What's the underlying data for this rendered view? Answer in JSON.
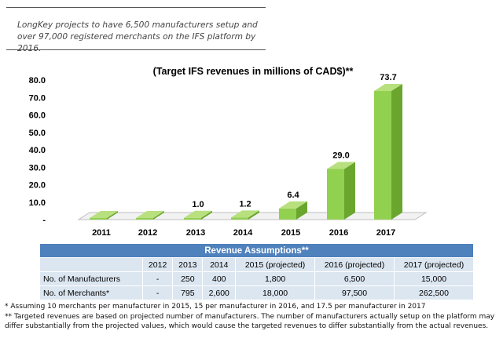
{
  "caption": "LongKey projects to have 6,500 manufacturers setup and over 97,000 registered merchants on the IFS platform by 2016.",
  "chart_data": {
    "type": "bar",
    "title": "(Target IFS revenues in millions of CAD$)**",
    "categories": [
      "2011",
      "2012",
      "2013",
      "2014",
      "2015",
      "2016",
      "2017"
    ],
    "values": [
      0,
      0,
      1.0,
      1.2,
      6.4,
      29.0,
      73.7
    ],
    "data_labels": [
      "-",
      "-",
      "1.0",
      "1.2",
      "6.4",
      "29.0",
      "73.7"
    ],
    "y_ticks": [
      "-",
      "10.0",
      "20.0",
      "30.0",
      "40.0",
      "50.0",
      "60.0",
      "70.0",
      "80.0"
    ],
    "ylim": [
      0,
      80
    ],
    "bar_color": "#92d050",
    "bar_side_color": "#6aa62e",
    "bar_top_color": "#b8e07e",
    "grid": false
  },
  "table": {
    "title": "Revenue Assumptions**",
    "columns": [
      "",
      "2012",
      "2013",
      "2014",
      "2015 (projected)",
      "2016 (projected)",
      "2017 (projected)"
    ],
    "rows": [
      {
        "label": "No. of Manufacturers",
        "cells": [
          "-",
          "250",
          "400",
          "1,800",
          "6,500",
          "15,000"
        ]
      },
      {
        "label": "No. of Merchants*",
        "cells": [
          "-",
          "795",
          "2,600",
          "18,000",
          "97,500",
          "262,500"
        ]
      }
    ]
  },
  "footnotes": [
    "* Assuming 10 merchants per manufacturer in 2015, 15 per manufacturer in 2016, and 17.5 per manufacturer in 2017",
    "** Targeted revenues are based on projected number of manufacturers. The number of manufacturers actually setup on the platform may differ substantially from the projected values, which would cause the targeted revenues to differ substantially from the actual revenues."
  ]
}
